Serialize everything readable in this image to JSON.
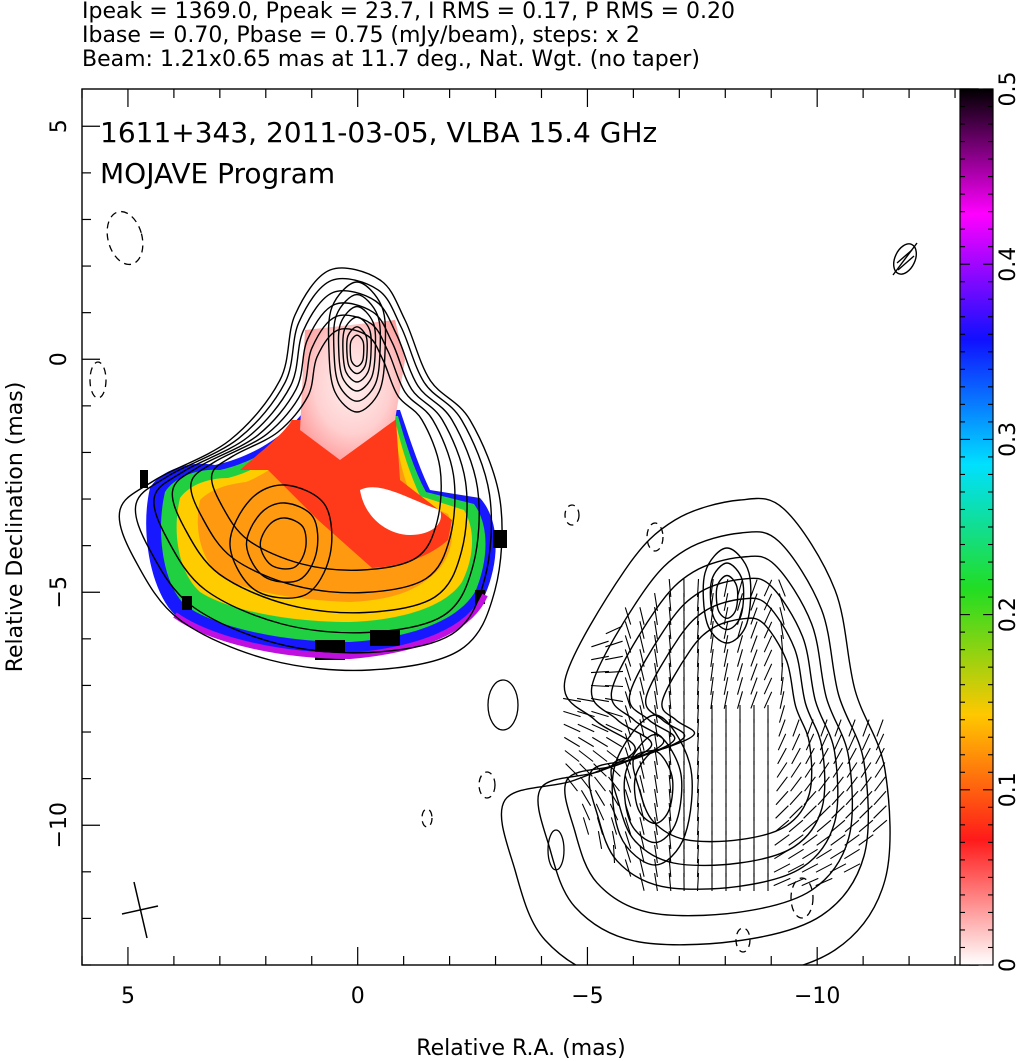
{
  "header": {
    "line1": "Ipeak = 1369.0, Ppeak = 23.7, I RMS = 0.17, P RMS = 0.20",
    "line2": "Ibase = 0.70, Pbase = 0.75 (mJy/beam), steps: x 2",
    "line3": "Beam: 1.21x0.65 mas at 11.7 deg., Nat. Wgt. (no taper)"
  },
  "chart_data": {
    "type": "heatmap",
    "annotations": [
      "1611+343, 2011-03-05, VLBA 15.4 GHz",
      "MOJAVE Program"
    ],
    "xlabel": "Relative R.A. (mas)",
    "ylabel": "Relative Declination (mas)",
    "xlim": [
      6,
      -13.5
    ],
    "ylim": [
      -13,
      5.8
    ],
    "x_ticks": [
      5,
      0,
      -5,
      -10
    ],
    "y_ticks": [
      5,
      0,
      -5,
      -10
    ],
    "colorbar": {
      "range": [
        0,
        0.5
      ],
      "ticks": [
        0,
        0.1,
        0.2,
        0.3,
        0.4,
        0.5
      ],
      "colors": [
        "#ffffff",
        "#ff1a1a",
        "#ffc800",
        "#22dd22",
        "#00e0ff",
        "#1010ff",
        "#ff00ff",
        "#000000"
      ]
    },
    "stokes_i_contours": {
      "center": [
        0,
        0
      ],
      "levels_mJy_per_beam": [
        0.7,
        1.4,
        2.8,
        5.6,
        11.2,
        22.4,
        44.8,
        89.6,
        179.2,
        358.4,
        716.8
      ],
      "peak": 1369.0
    },
    "beam": {
      "major_mas": 1.21,
      "minor_mas": 0.65,
      "pa_deg": 11.7
    }
  }
}
